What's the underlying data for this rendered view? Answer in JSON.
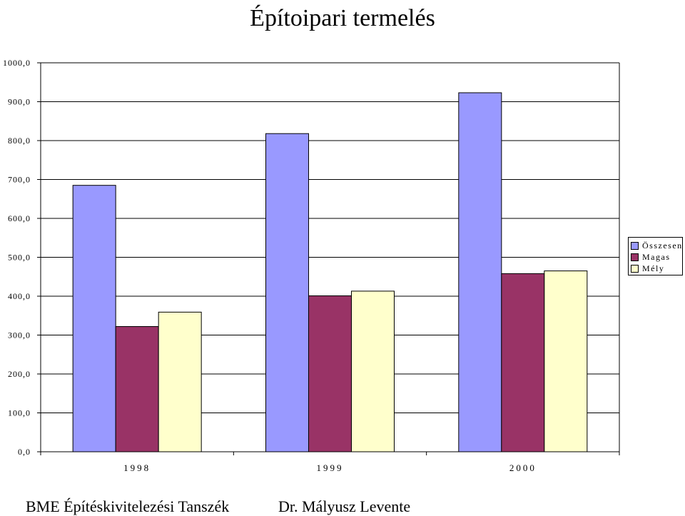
{
  "title": "Építoipari termelés",
  "footer": {
    "left": "BME Építéskivitelezési Tanszék",
    "right": "Dr. Mályusz Levente"
  },
  "chart_data": {
    "type": "bar",
    "title": "Építoipari termelés",
    "xlabel": "",
    "ylabel": "",
    "categories": [
      "1998",
      "1999",
      "2000"
    ],
    "ylim": [
      0,
      1000
    ],
    "yticks": [
      0,
      100,
      200,
      300,
      400,
      500,
      600,
      700,
      800,
      900,
      1000
    ],
    "ytick_labels": [
      "0,0",
      "100,0",
      "200,0",
      "300,0",
      "400,0",
      "500,0",
      "600,0",
      "700,0",
      "800,0",
      "900,0",
      "1000,0"
    ],
    "grid": true,
    "legend_position": "right",
    "series": [
      {
        "name": "Összesen",
        "color": "#9999FF",
        "values": [
          685,
          818,
          923
        ]
      },
      {
        "name": "Magas",
        "color": "#993366",
        "values": [
          322,
          401,
          458
        ]
      },
      {
        "name": "Mély",
        "color": "#FFFFCC",
        "values": [
          359,
          413,
          465
        ]
      }
    ]
  }
}
